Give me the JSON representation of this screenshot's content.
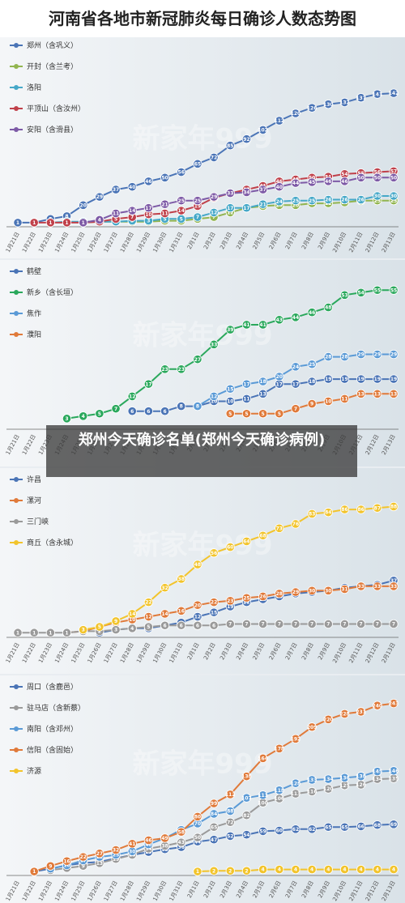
{
  "title": "河南省各地市新冠肺炎每日确诊人数态势图",
  "overlay_text": "郑州今天确诊名单(郑州今天确诊病例)",
  "watermark_text": "新家年999",
  "chart_data": [
    {
      "type": "line",
      "x": [
        "1月21日",
        "1月22日",
        "1月23日",
        "1月24日",
        "1月25日",
        "1月26日",
        "1月27日",
        "1月28日",
        "1月29日",
        "1月30日",
        "1月31日",
        "2月1日",
        "2月2日",
        "2月3日",
        "2月4日",
        "2月5日",
        "2月6日",
        "2月7日",
        "2月8日",
        "2月9日",
        "2月10日",
        "2月11日",
        "2月12日",
        "2月13日"
      ],
      "ylim": [
        0,
        150
      ],
      "series": [
        {
          "name": "郑州（含巩义）",
          "color": "#4a74b6",
          "values": [
            1,
            1,
            5,
            8,
            20,
            29,
            37,
            40,
            46,
            50,
            56,
            65,
            72,
            85,
            92,
            102,
            112,
            120,
            126,
            130,
            132,
            137,
            141,
            142
          ]
        },
        {
          "name": "开封（含兰考）",
          "color": "#92b550",
          "values": [
            null,
            null,
            null,
            null,
            1,
            2,
            2,
            2,
            2,
            3,
            3,
            5,
            7,
            12,
            17,
            19,
            20,
            20,
            22,
            22,
            23,
            25,
            25,
            25
          ]
        },
        {
          "name": "洛阳",
          "color": "#46a8c8",
          "values": [
            null,
            null,
            1,
            2,
            2,
            2,
            2,
            3,
            3,
            5,
            5,
            7,
            12,
            17,
            17,
            21,
            24,
            25,
            25,
            26,
            26,
            26,
            30,
            30
          ]
        },
        {
          "name": "平顶山（含汝州）",
          "color": "#c0404a",
          "values": [
            null,
            1,
            1,
            1,
            1,
            2,
            5,
            7,
            10,
            11,
            14,
            19,
            28,
            33,
            37,
            41,
            46,
            48,
            50,
            51,
            54,
            55,
            56,
            57
          ]
        },
        {
          "name": "安阳（含滑县）",
          "color": "#7d5aa6",
          "values": [
            null,
            null,
            null,
            null,
            1,
            4,
            11,
            14,
            17,
            21,
            25,
            25,
            29,
            33,
            34,
            37,
            40,
            44,
            45,
            46,
            46,
            50,
            50,
            50
          ]
        }
      ]
    },
    {
      "type": "line",
      "x": [
        "1月21日",
        "1月22日",
        "1月23日",
        "1月24日",
        "1月25日",
        "1月26日",
        "1月27日",
        "1月28日",
        "1月29日",
        "1月30日",
        "1月31日",
        "2月1日",
        "2月2日",
        "2月3日",
        "2月4日",
        "2月5日",
        "2月6日",
        "2月7日",
        "2月8日",
        "2月9日",
        "2月10日",
        "2月11日",
        "2月12日",
        "2月13日"
      ],
      "ylim": [
        0,
        60
      ],
      "series": [
        {
          "name": "鹤壁",
          "color": "#4a74b6",
          "values": [
            null,
            null,
            null,
            null,
            null,
            null,
            null,
            6,
            6,
            6,
            8,
            8,
            10,
            10,
            11,
            13,
            17,
            17,
            18,
            19,
            19,
            19,
            19,
            19
          ]
        },
        {
          "name": "新乡（含长垣）",
          "color": "#2aa85c",
          "values": [
            null,
            null,
            null,
            3,
            4,
            5,
            7,
            12,
            17,
            23,
            23,
            27,
            33,
            39,
            41,
            41,
            43,
            44,
            46,
            48,
            53,
            54,
            55,
            55
          ]
        },
        {
          "name": "焦作",
          "color": "#5a9ad6",
          "values": [
            null,
            null,
            null,
            null,
            null,
            null,
            null,
            null,
            null,
            null,
            null,
            8,
            12,
            15,
            17,
            18,
            20,
            24,
            25,
            28,
            28,
            29,
            29,
            29
          ]
        },
        {
          "name": "濮阳",
          "color": "#e07a3a",
          "values": [
            null,
            null,
            null,
            null,
            null,
            null,
            null,
            null,
            null,
            null,
            null,
            null,
            null,
            5,
            5,
            5,
            5,
            7,
            9,
            10,
            11,
            13,
            13,
            13
          ]
        }
      ]
    },
    {
      "type": "line",
      "x": [
        "1月21日",
        "1月22日",
        "1月23日",
        "1月24日",
        "1月25日",
        "1月26日",
        "1月27日",
        "1月28日",
        "1月29日",
        "1月30日",
        "1月31日",
        "2月1日",
        "2月2日",
        "2月3日",
        "2月4日",
        "2月5日",
        "2月6日",
        "2月7日",
        "2月8日",
        "2月9日",
        "2月10日",
        "2月11日",
        "2月12日",
        "2月13日"
      ],
      "ylim": [
        0,
        100
      ],
      "series": [
        {
          "name": "许昌",
          "color": "#4a74b6",
          "values": [
            null,
            null,
            null,
            null,
            null,
            1,
            3,
            4,
            4,
            6,
            8,
            12,
            15,
            19,
            22,
            24,
            26,
            28,
            29,
            30,
            32,
            33,
            34,
            37
          ]
        },
        {
          "name": "漯河",
          "color": "#e07a3a",
          "values": [
            null,
            null,
            null,
            1,
            2,
            5,
            8,
            10,
            12,
            14,
            16,
            20,
            22,
            23,
            25,
            26,
            28,
            29,
            30,
            30,
            31,
            33,
            33,
            33
          ]
        },
        {
          "name": "三门峡",
          "color": "#9a9a9a",
          "values": [
            1,
            1,
            1,
            1,
            2,
            2,
            3,
            4,
            5,
            6,
            6,
            6,
            6,
            7,
            7,
            7,
            7,
            7,
            7,
            7,
            7,
            7,
            7,
            7
          ]
        },
        {
          "name": "商丘（含永城）",
          "color": "#f2c42c",
          "values": [
            null,
            null,
            null,
            null,
            3,
            5,
            9,
            14,
            22,
            32,
            38,
            48,
            56,
            60,
            64,
            68,
            73,
            76,
            83,
            84,
            86,
            86,
            87,
            88
          ]
        }
      ]
    },
    {
      "type": "line",
      "x": [
        "1月21日",
        "1月22日",
        "1月23日",
        "1月24日",
        "1月25日",
        "1月26日",
        "1月27日",
        "1月28日",
        "1月29日",
        "1月30日",
        "1月31日",
        "2月1日",
        "2月2日",
        "2月3日",
        "2月4日",
        "2月5日",
        "2月6日",
        "2月7日",
        "2月8日",
        "2月9日",
        "2月10日",
        "2月11日",
        "2月12日",
        "2月13日"
      ],
      "ylim": [
        0,
        260
      ],
      "series": [
        {
          "name": "周口（含鹿邑）",
          "color": "#4a74b6",
          "values": [
            null,
            1,
            5,
            10,
            13,
            15,
            20,
            25,
            29,
            33,
            36,
            44,
            47,
            52,
            54,
            59,
            60,
            62,
            62,
            65,
            65,
            66,
            68,
            69
          ]
        },
        {
          "name": "驻马店（含新蔡）",
          "color": "#9a9a9a",
          "values": [
            null,
            null,
            3,
            6,
            9,
            13,
            19,
            25,
            34,
            38,
            43,
            50,
            65,
            72,
            82,
            100,
            106,
            113,
            116,
            120,
            125,
            126,
            134,
            135
          ]
        },
        {
          "name": "南阳（含邓州）",
          "color": "#5a9ad6",
          "values": [
            null,
            null,
            5,
            10,
            17,
            22,
            25,
            30,
            40,
            49,
            61,
            70,
            84,
            88,
            107,
            111,
            118,
            128,
            133,
            134,
            136,
            138,
            145,
            146
          ]
        },
        {
          "name": "信阳（含固始）",
          "color": "#e07a3a",
          "values": [
            null,
            1,
            9,
            16,
            22,
            27,
            32,
            41,
            46,
            49,
            58,
            80,
            99,
            112,
            138,
            164,
            178,
            192,
            209,
            220,
            228,
            231,
            240,
            243
          ]
        },
        {
          "name": "济源",
          "color": "#f2c42c",
          "values": [
            null,
            null,
            null,
            null,
            null,
            null,
            null,
            null,
            null,
            null,
            null,
            1,
            2,
            2,
            2,
            4,
            4,
            4,
            4,
            4,
            4,
            4,
            4,
            4
          ]
        }
      ]
    }
  ]
}
